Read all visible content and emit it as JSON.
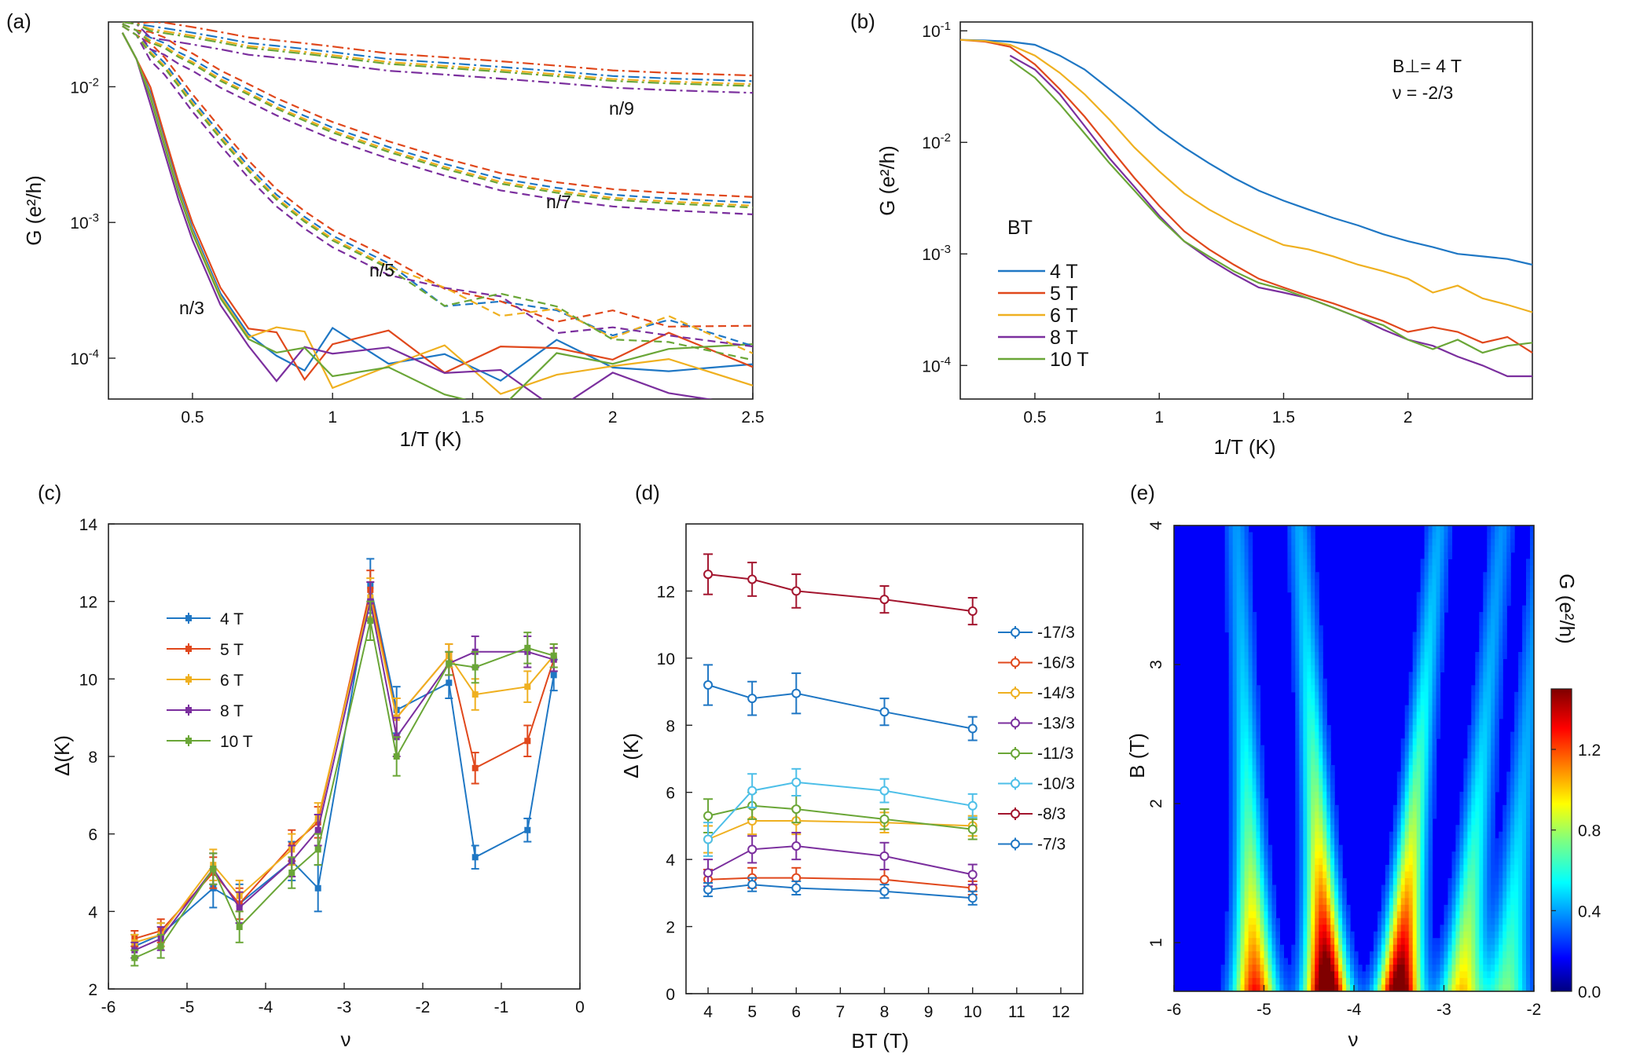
{
  "panels": {
    "a": {
      "label": "(a)",
      "xlabel": "1/T (K)",
      "ylabel": "G (e²/h)",
      "xticks": [
        "0.5",
        "1",
        "1.5",
        "2",
        "2.5"
      ],
      "yticks": [
        "10-4",
        "10-3",
        "10-2"
      ],
      "annotations": [
        "n/3",
        "n/5",
        "n/7",
        "n/9"
      ]
    },
    "b": {
      "label": "(b)",
      "xlabel": "1/T (K)",
      "ylabel": "G (e²/h)",
      "xticks": [
        "0.5",
        "1",
        "1.5",
        "2"
      ],
      "yticks": [
        "10-4",
        "10-3",
        "10-2",
        "10-1"
      ],
      "field_label": "B⊥= 4 T",
      "nu_label": "ν = -2/3",
      "legend_title": "BT",
      "legend": [
        "4 T",
        "5 T",
        "6 T",
        "8 T",
        "10 T"
      ]
    },
    "c": {
      "label": "(c)",
      "xlabel": "ν",
      "ylabel": "Δ(K)",
      "xticks": [
        "-6",
        "-5",
        "-4",
        "-3",
        "-2",
        "-1",
        "0"
      ],
      "yticks": [
        "2",
        "4",
        "6",
        "8",
        "10",
        "12",
        "14"
      ],
      "legend": [
        "4 T",
        "5 T",
        "6 T",
        "8 T",
        "10 T"
      ]
    },
    "d": {
      "label": "(d)",
      "xlabel": "BT (T)",
      "ylabel": "Δ (K)",
      "xticks": [
        "4",
        "5",
        "6",
        "7",
        "8",
        "9",
        "10",
        "11",
        "12"
      ],
      "yticks": [
        "0",
        "2",
        "4",
        "6",
        "8",
        "10",
        "12"
      ],
      "legend": [
        "-17/3",
        "-16/3",
        "-14/3",
        "-13/3",
        "-11/3",
        "-10/3",
        "-8/3",
        "-7/3"
      ]
    },
    "e": {
      "label": "(e)",
      "xlabel": "ν",
      "ylabel": "B (T)",
      "xticks": [
        "-6",
        "-5",
        "-4",
        "-3",
        "-2"
      ],
      "yticks": [
        "1",
        "2",
        "3",
        "4"
      ],
      "colorbar_label": "G (e²/h)",
      "colorbar_ticks": [
        "0.0",
        "0.4",
        "0.8",
        "1.2"
      ]
    }
  },
  "colors": {
    "4T": "#1f77c4",
    "5T": "#e0481c",
    "6T": "#efb020",
    "8T": "#7b2f9e",
    "10T": "#6aa637",
    "m10_3": "#4dbfe8",
    "m8_3": "#a3152e"
  },
  "chart_data": [
    {
      "type": "line",
      "panel": "a",
      "title": "",
      "xlabel": "1/T (K)",
      "ylabel": "G (e²/h)",
      "yscale": "log",
      "xlim": [
        0.2,
        2.5
      ],
      "ylim": [
        5e-05,
        0.03
      ],
      "x": [
        0.25,
        0.3,
        0.35,
        0.4,
        0.45,
        0.5,
        0.6,
        0.7,
        0.8,
        0.9,
        1.0,
        1.2,
        1.4,
        1.6,
        1.8,
        2.0,
        2.2,
        2.5
      ],
      "series": [
        {
          "name": "n/3",
          "style": "solid",
          "values": [
            0.025,
            0.016,
            0.009,
            0.004,
            0.0018,
            0.0009,
            0.0003,
            0.00015,
            0.00011,
            0.0001,
            0.0001,
            9e-05,
            8e-05,
            8e-05,
            8e-05,
            8e-05,
            8e-05,
            8e-05
          ]
        },
        {
          "name": "n/5",
          "style": "dashed",
          "values": [
            0.028,
            0.024,
            0.019,
            0.015,
            0.011,
            0.008,
            0.0045,
            0.0026,
            0.0016,
            0.0011,
            0.0008,
            0.0005,
            0.00032,
            0.00026,
            0.00022,
            0.00019,
            0.00016,
            0.00013
          ]
        },
        {
          "name": "n/7",
          "style": "dashed",
          "values": [
            0.029,
            0.026,
            0.023,
            0.021,
            0.018,
            0.016,
            0.012,
            0.0095,
            0.0075,
            0.0061,
            0.005,
            0.0036,
            0.0027,
            0.0021,
            0.0018,
            0.0016,
            0.0015,
            0.0014
          ]
        },
        {
          "name": "n/9",
          "style": "dashdot",
          "values": [
            0.03,
            0.029,
            0.028,
            0.027,
            0.026,
            0.025,
            0.023,
            0.021,
            0.02,
            0.019,
            0.018,
            0.016,
            0.015,
            0.014,
            0.013,
            0.012,
            0.0115,
            0.011
          ]
        }
      ]
    },
    {
      "type": "line",
      "panel": "b",
      "title": "",
      "xlabel": "1/T (K)",
      "ylabel": "G (e²/h)",
      "yscale": "log",
      "xlim": [
        0.2,
        2.5
      ],
      "ylim": [
        5e-05,
        0.12
      ],
      "x": [
        0.2,
        0.3,
        0.4,
        0.5,
        0.6,
        0.7,
        0.8,
        0.9,
        1.0,
        1.1,
        1.2,
        1.3,
        1.4,
        1.5,
        1.6,
        1.7,
        1.8,
        1.9,
        2.0,
        2.1,
        2.2,
        2.3,
        2.4,
        2.5
      ],
      "series": [
        {
          "name": "4 T",
          "values": [
            0.083,
            0.082,
            0.08,
            0.075,
            0.06,
            0.045,
            0.03,
            0.02,
            0.013,
            0.009,
            0.0065,
            0.0048,
            0.0037,
            0.003,
            0.0025,
            0.0021,
            0.0018,
            0.0015,
            0.0013,
            0.00115,
            0.001,
            0.00095,
            0.0009,
            0.0008
          ]
        },
        {
          "name": "5 T",
          "values": [
            0.083,
            0.08,
            0.072,
            0.05,
            0.03,
            0.017,
            0.009,
            0.0048,
            0.0027,
            0.0016,
            0.0011,
            0.0008,
            0.0006,
            0.0005,
            0.00042,
            0.00036,
            0.0003,
            0.00025,
            0.0002,
            0.00022,
            0.0002,
            0.00016,
            0.00018,
            0.00013
          ]
        },
        {
          "name": "6 T",
          "values": [
            0.083,
            0.081,
            0.075,
            0.06,
            0.042,
            0.027,
            0.016,
            0.009,
            0.0055,
            0.0035,
            0.0025,
            0.0019,
            0.0015,
            0.0012,
            0.0011,
            0.00095,
            0.0008,
            0.0007,
            0.0006,
            0.00045,
            0.00052,
            0.0004,
            0.00035,
            0.0003
          ]
        },
        {
          "name": "8 T",
          "values": [
            null,
            null,
            0.06,
            0.045,
            0.027,
            0.014,
            0.0072,
            0.004,
            0.0022,
            0.0013,
            0.0009,
            0.00066,
            0.0005,
            0.00045,
            0.0004,
            0.00033,
            0.00027,
            0.00021,
            0.00017,
            0.00015,
            0.00012,
            0.0001,
            8e-05,
            8e-05
          ]
        },
        {
          "name": "10 T",
          "values": [
            null,
            null,
            0.055,
            0.038,
            0.022,
            0.012,
            0.0065,
            0.0037,
            0.0021,
            0.0013,
            0.00095,
            0.0007,
            0.00055,
            0.00048,
            0.0004,
            0.00033,
            0.00027,
            0.00023,
            0.00017,
            0.00014,
            0.00017,
            0.00013,
            0.00015,
            0.00016
          ]
        }
      ]
    },
    {
      "type": "line",
      "panel": "c",
      "title": "",
      "xlabel": "ν",
      "ylabel": "Δ(K)",
      "xlim": [
        -6,
        0
      ],
      "ylim": [
        2,
        14
      ],
      "x": [
        -5.667,
        -5.333,
        -4.667,
        -4.333,
        -3.667,
        -3.333,
        -2.667,
        -2.333,
        -1.667,
        -1.333,
        -0.667,
        -0.333
      ],
      "series": [
        {
          "name": "4 T",
          "values": [
            3.1,
            3.4,
            4.6,
            4.2,
            5.3,
            4.6,
            12.4,
            9.2,
            9.9,
            5.4,
            6.1,
            10.1
          ],
          "errors": [
            0.3,
            0.3,
            0.5,
            0.5,
            0.5,
            0.6,
            0.7,
            0.6,
            0.4,
            0.3,
            0.3,
            0.4
          ]
        },
        {
          "name": "5 T",
          "values": [
            3.3,
            3.5,
            5.0,
            4.2,
            5.7,
            6.3,
            12.3,
            9.0,
            10.6,
            7.7,
            8.4,
            10.5
          ],
          "errors": [
            0.2,
            0.3,
            0.4,
            0.4,
            0.4,
            0.4,
            0.5,
            0.5,
            0.3,
            0.4,
            0.4,
            0.3
          ]
        },
        {
          "name": "6 T",
          "values": [
            3.2,
            3.4,
            5.2,
            4.4,
            5.6,
            6.4,
            12.1,
            9.0,
            10.6,
            9.6,
            9.8,
            10.6
          ],
          "errors": [
            0.2,
            0.3,
            0.4,
            0.4,
            0.4,
            0.4,
            0.5,
            0.5,
            0.3,
            0.4,
            0.4,
            0.3
          ]
        },
        {
          "name": "8 T",
          "values": [
            3.0,
            3.3,
            5.1,
            4.1,
            5.3,
            6.1,
            12.0,
            8.5,
            10.4,
            10.7,
            10.7,
            10.5
          ],
          "errors": [
            0.2,
            0.3,
            0.4,
            0.4,
            0.4,
            0.4,
            0.5,
            0.5,
            0.3,
            0.4,
            0.4,
            0.3
          ]
        },
        {
          "name": "10 T",
          "values": [
            2.8,
            3.1,
            5.1,
            3.6,
            5.0,
            5.6,
            11.5,
            8.0,
            10.4,
            10.3,
            10.8,
            10.6
          ],
          "errors": [
            0.2,
            0.3,
            0.4,
            0.4,
            0.4,
            0.4,
            0.5,
            0.5,
            0.3,
            0.4,
            0.4,
            0.3
          ]
        }
      ]
    },
    {
      "type": "line",
      "panel": "d",
      "title": "",
      "xlabel": "BT (T)",
      "ylabel": "Δ (K)",
      "xlim": [
        3.5,
        12.5
      ],
      "ylim": [
        0,
        14
      ],
      "x": [
        4,
        5,
        6,
        8,
        10
      ],
      "series": [
        {
          "name": "-17/3",
          "values": [
            9.2,
            8.8,
            8.95,
            8.4,
            7.9
          ],
          "errors": [
            0.6,
            0.5,
            0.6,
            0.4,
            0.35
          ]
        },
        {
          "name": "-16/3",
          "values": [
            3.4,
            3.45,
            3.45,
            3.4,
            3.15
          ],
          "errors": [
            0.3,
            0.3,
            0.3,
            0.3,
            0.2
          ]
        },
        {
          "name": "-14/3",
          "values": [
            4.6,
            5.15,
            5.15,
            5.1,
            5.0
          ],
          "errors": [
            0.4,
            0.4,
            0.4,
            0.3,
            0.3
          ]
        },
        {
          "name": "-13/3",
          "values": [
            3.6,
            4.3,
            4.4,
            4.1,
            3.55
          ],
          "errors": [
            0.4,
            0.4,
            0.4,
            0.4,
            0.3
          ]
        },
        {
          "name": "-11/3",
          "values": [
            5.3,
            5.6,
            5.5,
            5.2,
            4.9
          ],
          "errors": [
            0.5,
            0.4,
            0.4,
            0.3,
            0.3
          ]
        },
        {
          "name": "-10/3",
          "values": [
            4.6,
            6.05,
            6.3,
            6.05,
            5.6
          ],
          "errors": [
            0.5,
            0.5,
            0.4,
            0.35,
            0.35
          ]
        },
        {
          "name": "-8/3",
          "values": [
            12.5,
            12.35,
            12.0,
            11.75,
            11.4
          ],
          "errors": [
            0.6,
            0.5,
            0.5,
            0.4,
            0.4
          ]
        },
        {
          "name": "-7/3",
          "values": [
            3.1,
            3.25,
            3.15,
            3.05,
            2.85
          ],
          "errors": [
            0.2,
            0.2,
            0.2,
            0.2,
            0.2
          ]
        }
      ]
    },
    {
      "type": "heatmap",
      "panel": "e",
      "title": "",
      "xlabel": "ν",
      "ylabel": "B (T)",
      "xlim": [
        -6,
        -2
      ],
      "ylim": [
        0.65,
        4
      ],
      "colorbar": {
        "label": "G (e²/h)",
        "min": 0.0,
        "max": 1.5,
        "ticks": [
          0.0,
          0.4,
          0.8,
          1.2
        ],
        "colormap": "jet"
      },
      "streaks": [
        {
          "nu_at_B0": -5.1,
          "slope": 0.12,
          "peak_G": 1.0
        },
        {
          "nu_at_B0": -4.3,
          "slope": 0.18,
          "peak_G": 1.5
        },
        {
          "nu_at_B0": -3.5,
          "slope": 0.22,
          "peak_G": 1.4
        },
        {
          "nu_at_B0": -2.8,
          "slope": 0.22,
          "peak_G": 0.7
        },
        {
          "nu_at_B0": -2.3,
          "slope": 0.2,
          "peak_G": 0.4
        }
      ]
    }
  ]
}
